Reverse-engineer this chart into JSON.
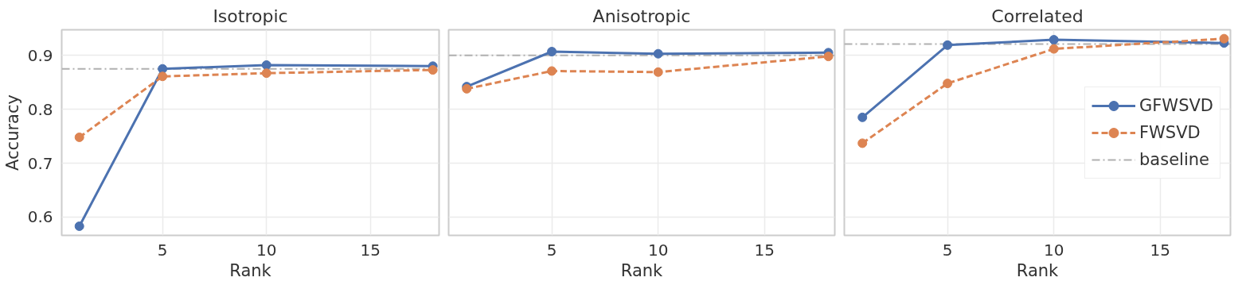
{
  "chart_data": [
    {
      "type": "line",
      "title": "Isotropic",
      "xlabel": "Rank",
      "ylabel": "Accuracy",
      "x": [
        1,
        5,
        10,
        18
      ],
      "xlim": [
        0.15,
        18.3
      ],
      "xticks": [
        5,
        10,
        15
      ],
      "ylim": [
        0.566,
        0.9475
      ],
      "yticks": [
        0.6,
        0.7,
        0.8,
        0.9
      ],
      "grid": true,
      "legend": false,
      "marker": "circle",
      "series": [
        {
          "color": "#4c72b0",
          "line_style": "solid",
          "values": [
            0.583,
            0.875,
            0.882,
            0.88
          ]
        },
        {
          "color": "#dd8452",
          "line_style": "dashed",
          "values": [
            0.748,
            0.861,
            0.867,
            0.873
          ]
        }
      ],
      "ref_lines": [
        {
          "axis": "y",
          "value": 0.875,
          "color": "#b0b0b0",
          "line_style": "dashdot"
        }
      ]
    },
    {
      "type": "line",
      "title": "Anisotropic",
      "xlabel": "Rank",
      "x": [
        1,
        5,
        10,
        18
      ],
      "xlim": [
        0.15,
        18.3
      ],
      "xticks": [
        5,
        10,
        15
      ],
      "ylim": [
        0.566,
        0.9475
      ],
      "yticks": [
        0.6,
        0.7,
        0.8,
        0.9
      ],
      "tick_labels": "x",
      "grid": true,
      "legend": false,
      "marker": "circle",
      "series": [
        {
          "color": "#4c72b0",
          "line_style": "solid",
          "values": [
            0.842,
            0.907,
            0.903,
            0.905
          ]
        },
        {
          "color": "#dd8452",
          "line_style": "dashed",
          "values": [
            0.838,
            0.871,
            0.869,
            0.898
          ]
        }
      ],
      "ref_lines": [
        {
          "axis": "y",
          "value": 0.9,
          "color": "#b0b0b0",
          "line_style": "dashdot"
        }
      ]
    },
    {
      "type": "line",
      "title": "Correlated",
      "xlabel": "Rank",
      "x": [
        1,
        5,
        10,
        18
      ],
      "xlim": [
        0.15,
        18.3
      ],
      "xticks": [
        5,
        10,
        15
      ],
      "ylim": [
        0.566,
        0.9475
      ],
      "yticks": [
        0.6,
        0.7,
        0.8,
        0.9
      ],
      "tick_labels": "x",
      "grid": true,
      "legend": "center right",
      "marker": "circle",
      "series": [
        {
          "name": "GFWSVD",
          "color": "#4c72b0",
          "line_style": "solid",
          "values": [
            0.785,
            0.919,
            0.929,
            0.923
          ]
        },
        {
          "name": "FWSVD",
          "color": "#dd8452",
          "line_style": "dashed",
          "values": [
            0.737,
            0.848,
            0.912,
            0.931
          ]
        }
      ],
      "ref_lines": [
        {
          "axis": "y",
          "value": 0.921,
          "label": "baseline",
          "color": "#b0b0b0",
          "line_style": "dashdot"
        }
      ]
    }
  ]
}
